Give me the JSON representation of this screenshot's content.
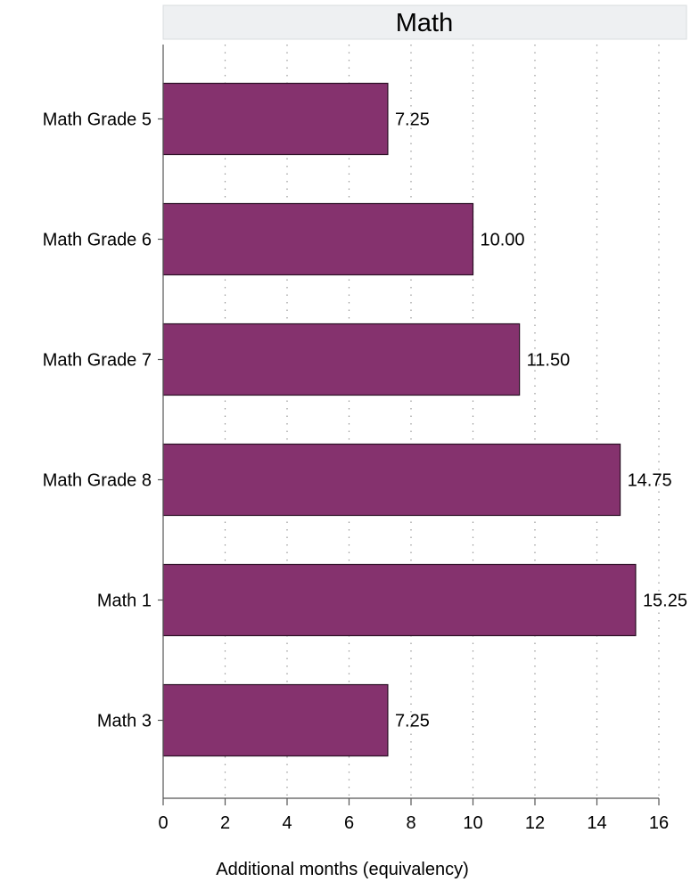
{
  "chart_data": {
    "type": "bar",
    "orientation": "horizontal",
    "title": "Math",
    "categories": [
      "Math Grade 5",
      "Math Grade 6",
      "Math Grade 7",
      "Math Grade 8",
      "Math 1",
      "Math 3"
    ],
    "values": [
      7.25,
      10.0,
      11.5,
      14.75,
      15.25,
      7.25
    ],
    "value_labels": [
      "7.25",
      "10.00",
      "11.50",
      "14.75",
      "15.25",
      "7.25"
    ],
    "xlabel": "Additional months (equivalency)",
    "ylabel": "",
    "xlim": [
      0,
      16
    ],
    "xticks": [
      0,
      2,
      4,
      6,
      8,
      10,
      12,
      14,
      16
    ],
    "grid": "vertical dotted",
    "colors": {
      "bar_fill": "#85326E",
      "bar_stroke": "#2a0f24",
      "title_bg": "#EEF0F2",
      "title_border": "#d8dcdf",
      "grid": "#9a9a9a",
      "axis": "#555555"
    }
  }
}
